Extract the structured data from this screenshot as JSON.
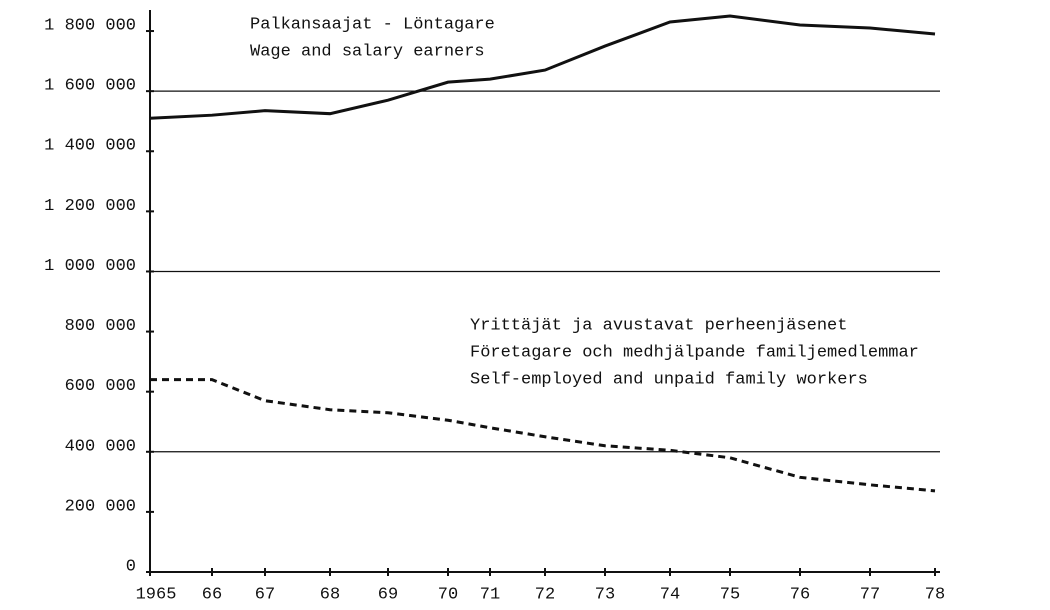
{
  "chart_data": {
    "type": "line",
    "categories": [
      "1965",
      "66",
      "67",
      "68",
      "69",
      "70",
      "71",
      "72",
      "73",
      "74",
      "75",
      "76",
      "77",
      "78"
    ],
    "series": [
      {
        "name": "Palkansaajat - Löntagare",
        "color": "#111111",
        "dash": false,
        "values": [
          1510000,
          1520000,
          1535000,
          1525000,
          1570000,
          1630000,
          1640000,
          1670000,
          1750000,
          1830000,
          1850000,
          1820000,
          1810000,
          1790000
        ]
      },
      {
        "name": "Yrittäjät ja avustavat perheenjäsenet",
        "color": "#111111",
        "dash": true,
        "values": [
          640000,
          640000,
          570000,
          540000,
          530000,
          505000,
          480000,
          450000,
          420000,
          405000,
          380000,
          315000,
          290000,
          270000
        ]
      }
    ],
    "annotations": [
      [
        "Palkansaajat - Löntagare",
        "Wage and salary earners"
      ],
      [
        "Yrittäjät ja avustavat perheenjäsenet",
        "Företagare och medhjälpande familjemedlemmar",
        "Self-employed and unpaid family workers"
      ]
    ],
    "ylim": [
      0,
      1870000
    ],
    "yticks": [
      0,
      {
        "value": 200000,
        "label": "200 000"
      },
      {
        "value": 400000,
        "label": "400 000"
      },
      {
        "value": 600000,
        "label": "600 000"
      },
      {
        "value": 800000,
        "label": "800 000"
      },
      {
        "value": 1000000,
        "label": "1 000 000"
      },
      {
        "value": 1200000,
        "label": "1 200 000"
      },
      {
        "value": 1400000,
        "label": "1 400 000"
      },
      {
        "value": 1600000,
        "label": "1 600 000"
      },
      {
        "value": 1800000,
        "label": "1 800 000"
      }
    ],
    "grid_lines": [
      400000,
      1000000,
      1600000
    ]
  }
}
